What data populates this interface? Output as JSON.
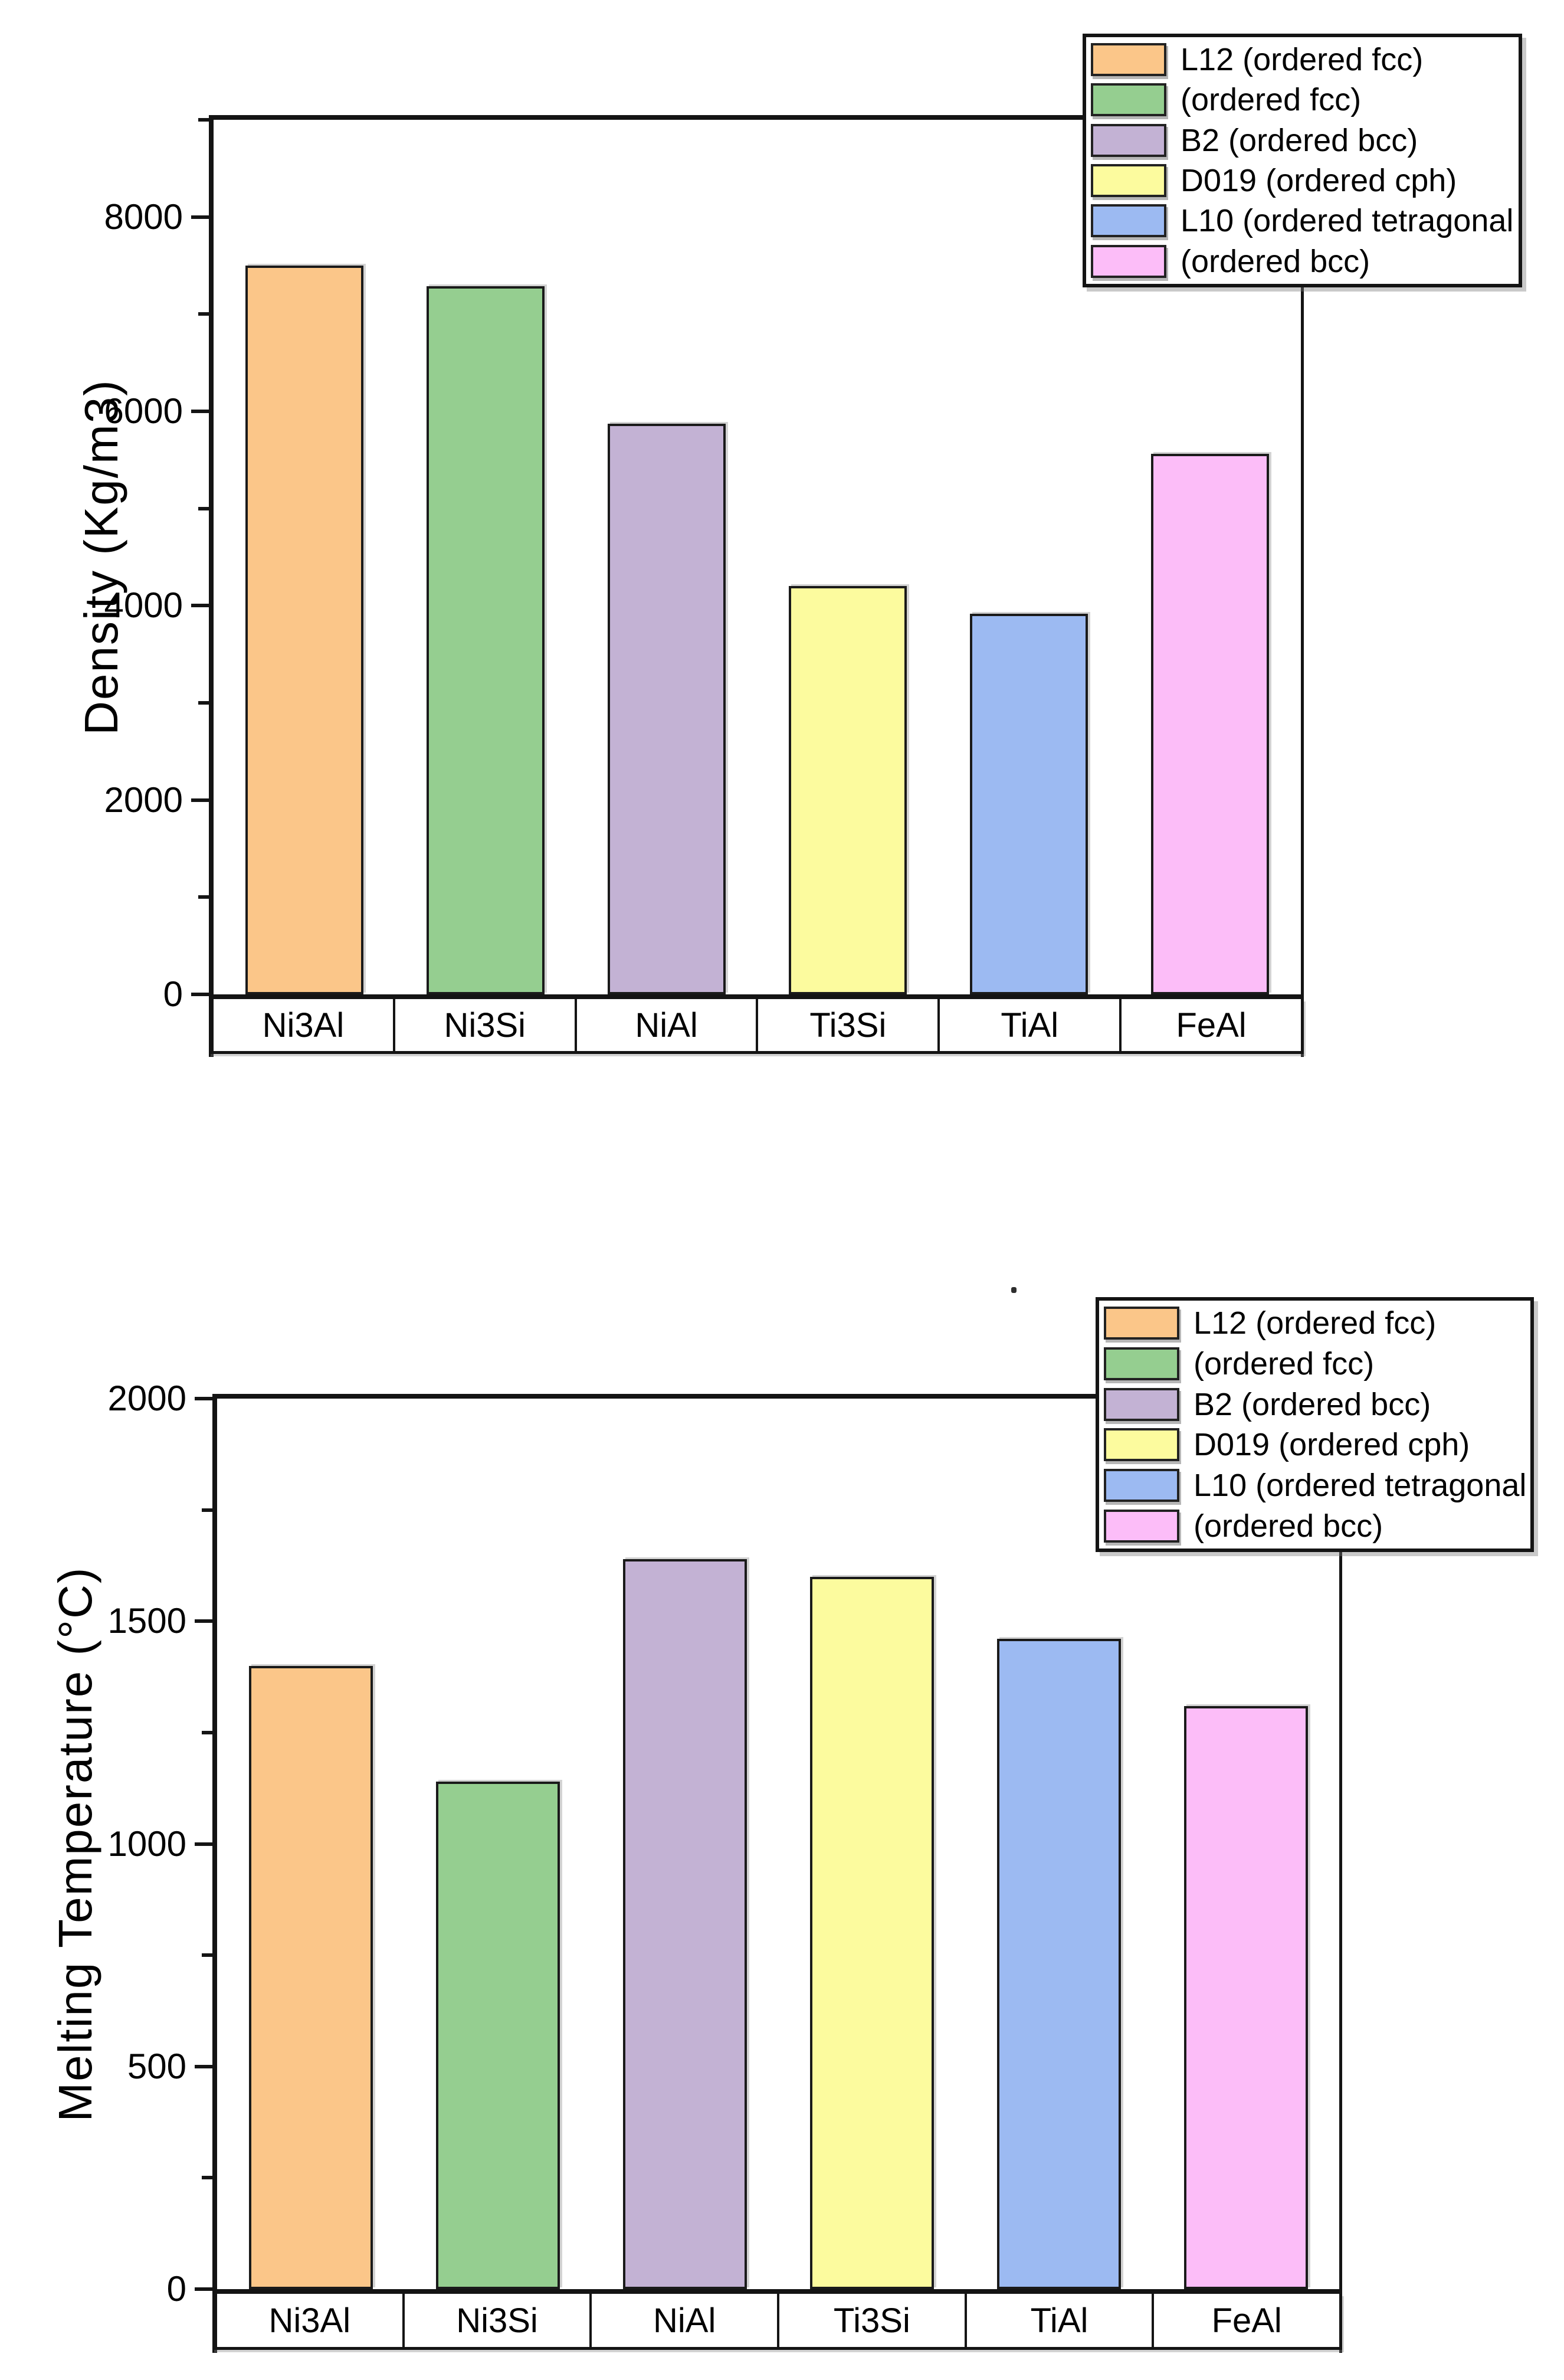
{
  "figure": {
    "background": "#ffffff",
    "stray_mark": "."
  },
  "legend": {
    "position": "top-right",
    "entries": [
      {
        "label": "L12 (ordered fcc)",
        "color": "#FBC689"
      },
      {
        "label": "(ordered fcc)",
        "color": "#95CE90"
      },
      {
        "label": "B2 (ordered bcc)",
        "color": "#C3B2D4"
      },
      {
        "label": "D019 (ordered cph)",
        "color": "#FCFB9E"
      },
      {
        "label": "L10 (ordered tetragonal",
        "color": "#9CBAF2"
      },
      {
        "label": "(ordered bcc)",
        "color": "#FCBDF8"
      }
    ]
  },
  "chart_data": [
    {
      "type": "bar",
      "title": "",
      "ylabel": "Density (Kg/m3)",
      "xlabel": "",
      "categories": [
        "Ni3Al",
        "Ni3Si",
        "NiAl",
        "Ti3Si",
        "TiAl",
        "FeAl"
      ],
      "values": [
        7500,
        7290,
        5870,
        4200,
        3920,
        5560
      ],
      "ylim": [
        0,
        9000
      ],
      "yticks_major": [
        0,
        2000,
        4000,
        6000,
        8000
      ],
      "yticks_minor": [
        1000,
        3000,
        5000,
        7000,
        9000
      ],
      "grid": false,
      "legend_position": "top-right",
      "bar_colors": [
        "#FBC689",
        "#95CE90",
        "#C3B2D4",
        "#FCFB9E",
        "#9CBAF2",
        "#FCBDF8"
      ],
      "legend_labels": [
        "L12 (ordered fcc)",
        "(ordered fcc)",
        "B2 (ordered bcc)",
        "D019 (ordered cph)",
        "L10 (ordered tetragonal",
        "(ordered bcc)"
      ]
    },
    {
      "type": "bar",
      "title": "",
      "ylabel": "Melting Temperature (°C)",
      "xlabel": "",
      "categories": [
        "Ni3Al",
        "Ni3Si",
        "NiAl",
        "Ti3Si",
        "TiAl",
        "FeAl"
      ],
      "values": [
        1400,
        1140,
        1640,
        1600,
        1460,
        1310
      ],
      "ylim": [
        0,
        2000
      ],
      "yticks_major": [
        0,
        500,
        1000,
        1500,
        2000
      ],
      "yticks_minor": [
        250,
        750,
        1250,
        1750
      ],
      "grid": false,
      "legend_position": "top-right",
      "bar_colors": [
        "#FBC689",
        "#95CE90",
        "#C3B2D4",
        "#FCFB9E",
        "#9CBAF2",
        "#FCBDF8"
      ],
      "legend_labels": [
        "L12 (ordered fcc)",
        "(ordered fcc)",
        "B2 (ordered bcc)",
        "D019 (ordered cph)",
        "L10 (ordered tetragonal",
        "(ordered bcc)"
      ]
    }
  ]
}
